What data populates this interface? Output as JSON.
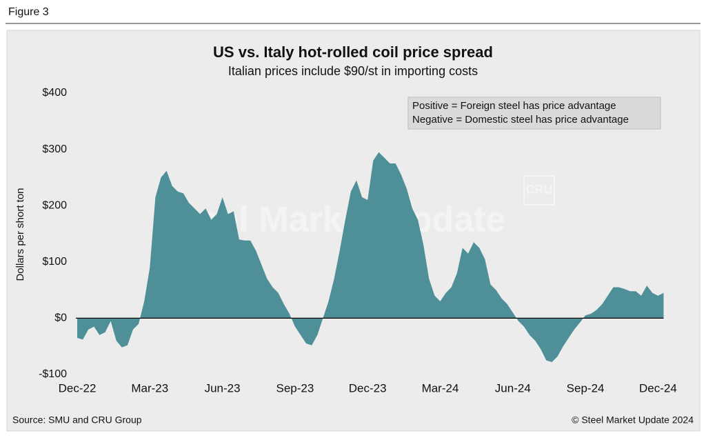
{
  "figure_label": "Figure 3",
  "chart_data": {
    "type": "area",
    "title": "US vs. Italy hot-rolled coil price spread",
    "subtitle": "Italian prices include $90/st in importing costs",
    "ylabel": "Dollars per short ton",
    "annotations": [
      "Positive = Foreign steel has price advantage",
      "Negative = Domestic steel has price advantage"
    ],
    "watermark": "Steel Market Update",
    "watermark_logo": "CRU",
    "color": "#4e8f98",
    "ylim": [
      -100,
      400
    ],
    "yticks": [
      {
        "value": -100,
        "label": "-$100"
      },
      {
        "value": 0,
        "label": "$0"
      },
      {
        "value": 100,
        "label": "$100"
      },
      {
        "value": 200,
        "label": "$200"
      },
      {
        "value": 300,
        "label": "$300"
      },
      {
        "value": 400,
        "label": "$400"
      }
    ],
    "categories": [
      "Dec-22",
      null,
      null,
      null,
      null,
      null,
      null,
      null,
      null,
      null,
      null,
      null,
      null,
      "Mar-23",
      null,
      null,
      null,
      null,
      null,
      null,
      null,
      null,
      null,
      null,
      null,
      null,
      "Jun-23",
      null,
      null,
      null,
      null,
      null,
      null,
      null,
      null,
      null,
      null,
      null,
      null,
      "Sep-23",
      null,
      null,
      null,
      null,
      null,
      null,
      null,
      null,
      null,
      null,
      null,
      null,
      "Dec-23",
      null,
      null,
      null,
      null,
      null,
      null,
      null,
      null,
      null,
      null,
      null,
      null,
      "Mar-24",
      null,
      null,
      null,
      null,
      null,
      null,
      null,
      null,
      null,
      null,
      null,
      null,
      "Jun-24",
      null,
      null,
      null,
      null,
      null,
      null,
      null,
      null,
      null,
      null,
      null,
      null,
      "Sep-24",
      null,
      null,
      null,
      null,
      null,
      null,
      null,
      null,
      null,
      null,
      null,
      null,
      "Dec-24",
      null
    ],
    "values": [
      -35,
      -38,
      -20,
      -15,
      -30,
      -25,
      -5,
      -40,
      -52,
      -48,
      -20,
      -10,
      30,
      90,
      215,
      250,
      262,
      235,
      225,
      222,
      205,
      195,
      185,
      195,
      175,
      185,
      215,
      185,
      190,
      140,
      138,
      138,
      120,
      95,
      70,
      55,
      45,
      25,
      8,
      -15,
      -30,
      -45,
      -48,
      -30,
      0,
      30,
      70,
      120,
      175,
      225,
      245,
      215,
      210,
      280,
      295,
      285,
      275,
      275,
      255,
      230,
      195,
      175,
      130,
      70,
      40,
      30,
      45,
      55,
      80,
      125,
      115,
      135,
      125,
      105,
      60,
      50,
      35,
      25,
      10,
      -5,
      -15,
      -30,
      -40,
      -55,
      -75,
      -78,
      -68,
      -50,
      -35,
      -20,
      -8,
      5,
      8,
      15,
      25,
      40,
      55,
      55,
      52,
      48,
      48,
      40,
      58,
      45,
      40,
      45
    ]
  },
  "footer": {
    "source": "Source: SMU and CRU Group",
    "copyright": "© Steel Market Update 2024"
  }
}
